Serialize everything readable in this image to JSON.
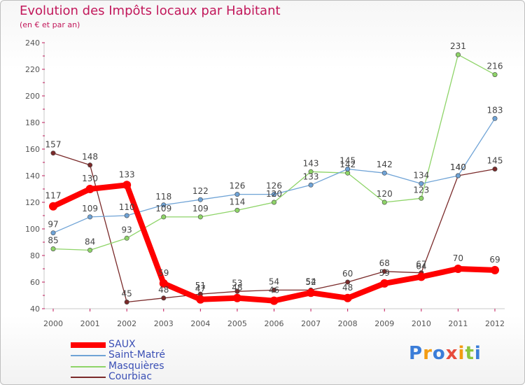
{
  "page_title": "Evolution des Impôts locaux par Habitant",
  "page_subtitle": "(en € et par an)",
  "logo_letters": [
    {
      "char": "P",
      "color": "#3b7dd8"
    },
    {
      "char": "r",
      "color": "#f39c12"
    },
    {
      "char": "o",
      "color": "#3b7dd8"
    },
    {
      "char": "x",
      "color": "#e74c3c"
    },
    {
      "char": "i",
      "color": "#f39c12"
    },
    {
      "char": "t",
      "color": "#8cc63f"
    },
    {
      "char": "i",
      "color": "#3b7dd8"
    }
  ],
  "chart_data": {
    "type": "line",
    "title": "Evolution des Impôts locaux par Habitant",
    "subtitle": "(en € et par an)",
    "xlabel": "",
    "ylabel": "",
    "x": [
      "2000",
      "2001",
      "2002",
      "2003",
      "2004",
      "2005",
      "2006",
      "2007",
      "2008",
      "2009",
      "2010",
      "2011",
      "2012"
    ],
    "ylim": [
      40,
      240
    ],
    "yticks": [
      40,
      60,
      80,
      100,
      120,
      140,
      160,
      180,
      200,
      220,
      240
    ],
    "grid": false,
    "legend_position": "bottom-left",
    "series": [
      {
        "name": "SAUX",
        "color": "#ff0000",
        "values": [
          117,
          130,
          133,
          59,
          47,
          48,
          46,
          52,
          48,
          59,
          64,
          70,
          69
        ]
      },
      {
        "name": "Saint-Matré",
        "color": "#6fa3d6",
        "values": [
          97,
          109,
          110,
          118,
          122,
          126,
          126,
          133,
          145,
          142,
          134,
          140,
          183
        ]
      },
      {
        "name": "Masquières",
        "color": "#8ed468",
        "values": [
          85,
          84,
          93,
          109,
          109,
          114,
          120,
          143,
          142,
          120,
          123,
          231,
          216
        ]
      },
      {
        "name": "Courbiac",
        "color": "#7a2a2a",
        "values": [
          157,
          148,
          45,
          48,
          51,
          53,
          54,
          54,
          60,
          68,
          67,
          140,
          145
        ]
      }
    ]
  }
}
